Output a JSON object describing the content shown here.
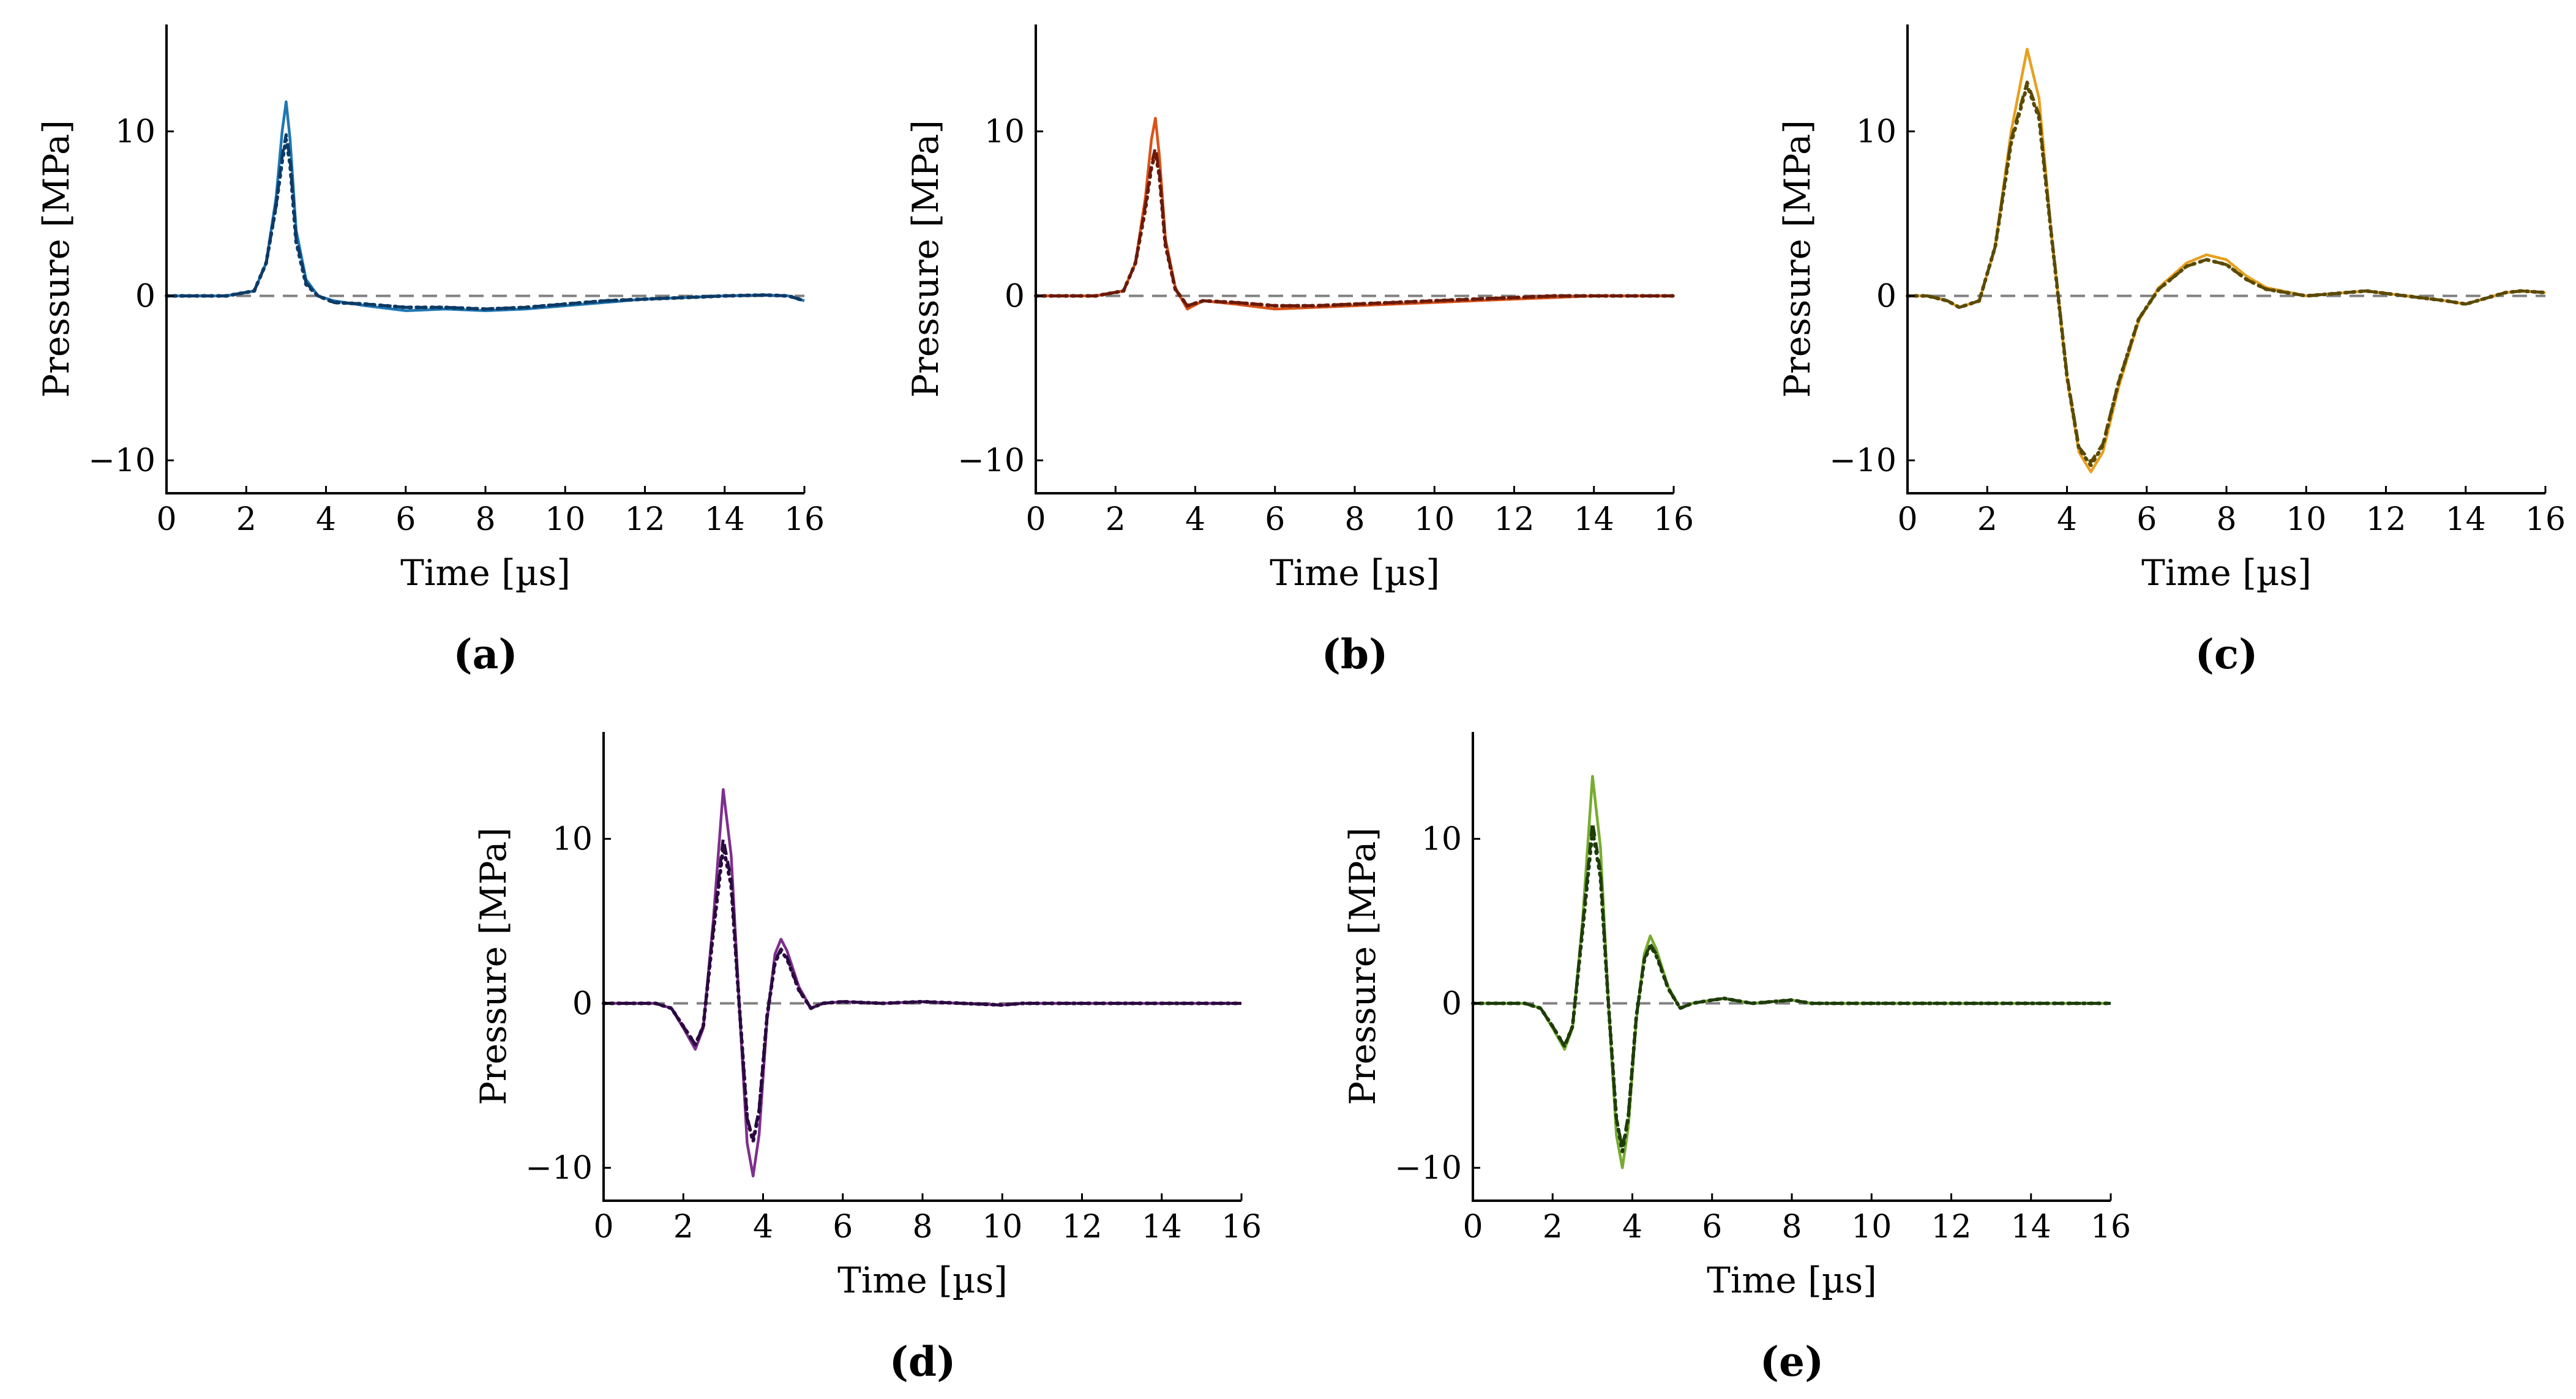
{
  "chart_data": [
    {
      "id": "a",
      "type": "line",
      "panel_label": "(a)",
      "xlabel": "Time [µs]",
      "ylabel": "Pressure [MPa]",
      "xlim": [
        0,
        16
      ],
      "ylim": [
        -12,
        16.5
      ],
      "xticks": [
        0,
        2,
        4,
        6,
        8,
        10,
        12,
        14,
        16
      ],
      "yticks": [
        -10,
        0,
        10
      ],
      "color": "#1f77b4",
      "dark": "#0d3b66",
      "series": [
        {
          "name": "solid",
          "style": "solid",
          "x": [
            0,
            1.5,
            2.2,
            2.5,
            2.75,
            2.9,
            3.0,
            3.1,
            3.25,
            3.5,
            3.8,
            4.2,
            5,
            6,
            7,
            8,
            9,
            10,
            11,
            12,
            13,
            14,
            15,
            15.6,
            16
          ],
          "y": [
            0,
            0,
            0.3,
            2,
            6,
            10,
            11.8,
            9.5,
            4,
            1,
            0,
            -0.3,
            -0.6,
            -0.9,
            -0.8,
            -0.9,
            -0.8,
            -0.6,
            -0.4,
            -0.2,
            -0.1,
            0,
            0.05,
            0,
            -0.3
          ]
        },
        {
          "name": "dashed",
          "style": "dashed",
          "x": [
            0,
            1.5,
            2.2,
            2.5,
            2.75,
            2.9,
            3.0,
            3.1,
            3.25,
            3.5,
            3.8,
            4.2,
            5,
            6,
            7,
            8,
            9,
            10,
            11,
            12,
            13,
            14,
            15,
            15.6,
            16
          ],
          "y": [
            0,
            0,
            0.3,
            2,
            5.5,
            8.5,
            9.8,
            8.3,
            3.5,
            0.8,
            0,
            -0.4,
            -0.5,
            -0.7,
            -0.7,
            -0.8,
            -0.7,
            -0.5,
            -0.3,
            -0.2,
            -0.1,
            0,
            0.05,
            0,
            -0.3
          ]
        },
        {
          "name": "dotted",
          "style": "dotted",
          "x": [
            0,
            1.5,
            2.2,
            2.5,
            2.75,
            2.9,
            3.0,
            3.1,
            3.25,
            3.5,
            3.8,
            4.2,
            5,
            6,
            7,
            8,
            9,
            10,
            11,
            12,
            13,
            14,
            15,
            15.6,
            16
          ],
          "y": [
            0,
            0,
            0.3,
            2,
            5.5,
            8.2,
            9.5,
            8.0,
            3.3,
            0.7,
            0,
            -0.4,
            -0.5,
            -0.7,
            -0.7,
            -0.8,
            -0.7,
            -0.5,
            -0.3,
            -0.2,
            -0.1,
            0,
            0.05,
            0,
            -0.3
          ]
        }
      ]
    },
    {
      "id": "b",
      "type": "line",
      "panel_label": "(b)",
      "xlabel": "Time [µs]",
      "ylabel": "Pressure [MPa]",
      "xlim": [
        0,
        16
      ],
      "ylim": [
        -12,
        16.5
      ],
      "xticks": [
        0,
        2,
        4,
        6,
        8,
        10,
        12,
        14,
        16
      ],
      "yticks": [
        -10,
        0,
        10
      ],
      "color": "#d95319",
      "dark": "#6b1a0a",
      "series": [
        {
          "name": "solid",
          "style": "solid",
          "x": [
            0,
            1.5,
            2.2,
            2.5,
            2.75,
            2.9,
            3.0,
            3.1,
            3.25,
            3.5,
            3.8,
            4.2,
            5,
            6,
            7,
            8,
            9,
            10,
            11,
            12,
            13,
            14,
            15,
            16
          ],
          "y": [
            0,
            0,
            0.3,
            2,
            6,
            9.5,
            10.8,
            8.5,
            3.5,
            0.5,
            -0.8,
            -0.3,
            -0.5,
            -0.8,
            -0.7,
            -0.6,
            -0.5,
            -0.4,
            -0.3,
            -0.2,
            -0.1,
            0,
            0,
            0
          ]
        },
        {
          "name": "dashed",
          "style": "dashed",
          "x": [
            0,
            1.5,
            2.2,
            2.5,
            2.75,
            2.9,
            3.0,
            3.1,
            3.25,
            3.5,
            3.8,
            4.2,
            5,
            6,
            7,
            8,
            9,
            10,
            11,
            12,
            13,
            14,
            15,
            16
          ],
          "y": [
            0,
            0,
            0.3,
            2,
            5.5,
            8,
            9.0,
            7.5,
            3.2,
            0.4,
            -0.6,
            -0.3,
            -0.4,
            -0.6,
            -0.6,
            -0.5,
            -0.4,
            -0.3,
            -0.2,
            -0.1,
            0,
            0,
            0,
            0
          ]
        },
        {
          "name": "dotted",
          "style": "dotted",
          "x": [
            0,
            1.5,
            2.2,
            2.5,
            2.75,
            2.9,
            3.0,
            3.1,
            3.25,
            3.5,
            3.8,
            4.2,
            5,
            6,
            7,
            8,
            9,
            10,
            11,
            12,
            13,
            14,
            15,
            16
          ],
          "y": [
            0,
            0,
            0.3,
            2,
            5.3,
            7.8,
            8.7,
            7.3,
            3.1,
            0.4,
            -0.6,
            -0.3,
            -0.4,
            -0.6,
            -0.6,
            -0.5,
            -0.4,
            -0.3,
            -0.2,
            -0.1,
            0,
            0,
            0,
            0
          ]
        }
      ]
    },
    {
      "id": "c",
      "type": "line",
      "panel_label": "(c)",
      "xlabel": "Time [µs]",
      "ylabel": "Pressure [MPa]",
      "xlim": [
        0,
        16
      ],
      "ylim": [
        -12,
        16.5
      ],
      "xticks": [
        0,
        2,
        4,
        6,
        8,
        10,
        12,
        14,
        16
      ],
      "yticks": [
        -10,
        0,
        10
      ],
      "color": "#e6a020",
      "dark": "#5a4a00",
      "series": [
        {
          "name": "solid",
          "style": "solid",
          "x": [
            0,
            0.5,
            1.0,
            1.3,
            1.8,
            2.2,
            2.6,
            3.0,
            3.3,
            3.6,
            4.0,
            4.3,
            4.6,
            4.9,
            5.3,
            5.8,
            6.3,
            7.0,
            7.5,
            8.0,
            8.5,
            9.0,
            10.0,
            11.0,
            11.5,
            12.5,
            13.5,
            14.0,
            15.0,
            15.4,
            16.0
          ],
          "y": [
            0,
            0,
            -0.3,
            -0.7,
            -0.3,
            3,
            10,
            15,
            12,
            4,
            -5,
            -9.5,
            -10.7,
            -9.5,
            -5.5,
            -1.5,
            0.5,
            2,
            2.5,
            2.2,
            1.2,
            0.5,
            0,
            0.2,
            0.3,
            0,
            -0.3,
            -0.5,
            0.2,
            0.3,
            0.2
          ]
        },
        {
          "name": "dashed",
          "style": "dashed",
          "x": [
            0,
            0.5,
            1.0,
            1.3,
            1.8,
            2.2,
            2.6,
            3.0,
            3.3,
            3.6,
            4.0,
            4.3,
            4.6,
            4.9,
            5.3,
            5.8,
            6.3,
            7.0,
            7.5,
            8.0,
            8.5,
            9.0,
            10.0,
            11.0,
            11.5,
            12.5,
            13.5,
            14.0,
            15.0,
            15.4,
            16.0
          ],
          "y": [
            0,
            0,
            -0.3,
            -0.7,
            -0.3,
            3,
            9.5,
            13,
            11,
            4,
            -4.8,
            -9.2,
            -10.1,
            -9.0,
            -5.2,
            -1.4,
            0.4,
            1.8,
            2.2,
            1.9,
            1.0,
            0.4,
            0,
            0.2,
            0.3,
            0,
            -0.3,
            -0.5,
            0.2,
            0.3,
            0.2
          ]
        },
        {
          "name": "dotted",
          "style": "dotted",
          "x": [
            0,
            0.5,
            1.0,
            1.3,
            1.8,
            2.2,
            2.6,
            3.0,
            3.3,
            3.6,
            4.0,
            4.3,
            4.6,
            4.9,
            5.3,
            5.8,
            6.3,
            7.0,
            7.5,
            8.0,
            8.5,
            9.0,
            10.0,
            11.0,
            11.5,
            12.5,
            13.5,
            14.0,
            15.0,
            15.4,
            16.0
          ],
          "y": [
            0,
            0,
            -0.3,
            -0.7,
            -0.3,
            3,
            9.3,
            12.8,
            10.8,
            3.9,
            -4.9,
            -9.3,
            -10.3,
            -9.1,
            -5.2,
            -1.4,
            0.4,
            1.8,
            2.2,
            1.9,
            1.0,
            0.4,
            0,
            0.2,
            0.3,
            0,
            -0.3,
            -0.5,
            0.2,
            0.3,
            0.2
          ]
        }
      ]
    },
    {
      "id": "d",
      "type": "line",
      "panel_label": "(d)",
      "xlabel": "Time [µs]",
      "ylabel": "Pressure [MPa]",
      "xlim": [
        0,
        16
      ],
      "ylim": [
        -12,
        16.5
      ],
      "xticks": [
        0,
        2,
        4,
        6,
        8,
        10,
        12,
        14,
        16
      ],
      "yticks": [
        -10,
        0,
        10
      ],
      "color": "#7e2f8e",
      "dark": "#2b0a40",
      "series": [
        {
          "name": "solid",
          "style": "solid",
          "x": [
            0,
            1.3,
            1.7,
            2.0,
            2.3,
            2.5,
            2.75,
            3.0,
            3.2,
            3.4,
            3.6,
            3.75,
            3.9,
            4.1,
            4.3,
            4.45,
            4.6,
            4.9,
            5.2,
            5.5,
            6.0,
            7.0,
            8.0,
            9.0,
            10.0,
            10.5,
            11.0,
            12.0,
            13.0,
            14.0,
            15.0,
            16.0
          ],
          "y": [
            0,
            0,
            -0.3,
            -1.5,
            -2.8,
            -1.5,
            5,
            13,
            9,
            0,
            -8.5,
            -10.5,
            -8,
            -1,
            3,
            3.9,
            3.2,
            1,
            -0.3,
            0,
            0.1,
            0,
            0.1,
            0,
            -0.1,
            0,
            0,
            0,
            0,
            0,
            0,
            0
          ]
        },
        {
          "name": "dashed",
          "style": "dashed",
          "x": [
            0,
            1.3,
            1.7,
            2.0,
            2.3,
            2.5,
            2.75,
            3.0,
            3.2,
            3.4,
            3.6,
            3.75,
            3.9,
            4.1,
            4.3,
            4.45,
            4.6,
            4.9,
            5.2,
            5.5,
            6.0,
            7.0,
            8.0,
            9.0,
            10.0,
            10.5,
            11.0,
            12.0,
            13.0,
            14.0,
            15.0,
            16.0
          ],
          "y": [
            0,
            0,
            -0.3,
            -1.4,
            -2.5,
            -1.4,
            4.5,
            10,
            7.5,
            0,
            -7,
            -8.2,
            -6.5,
            -0.8,
            2.6,
            3.3,
            2.8,
            0.8,
            -0.3,
            0,
            0.1,
            0,
            0.1,
            0,
            -0.1,
            0,
            0,
            0,
            0,
            0,
            0,
            0
          ]
        },
        {
          "name": "dotted",
          "style": "dotted",
          "x": [
            0,
            1.3,
            1.7,
            2.0,
            2.3,
            2.5,
            2.75,
            3.0,
            3.2,
            3.4,
            3.6,
            3.75,
            3.9,
            4.1,
            4.3,
            4.45,
            4.6,
            4.9,
            5.2,
            5.5,
            6.0,
            7.0,
            8.0,
            9.0,
            10.0,
            10.5,
            11.0,
            12.0,
            13.0,
            14.0,
            15.0,
            16.0
          ],
          "y": [
            0,
            0,
            -0.3,
            -1.4,
            -2.5,
            -1.4,
            4.3,
            9.5,
            7.2,
            0,
            -7,
            -8.4,
            -6.6,
            -0.8,
            2.5,
            3.2,
            2.7,
            0.8,
            -0.3,
            0,
            0.1,
            0,
            0.1,
            0,
            -0.1,
            0,
            0,
            0,
            0,
            0,
            0,
            0
          ]
        }
      ]
    },
    {
      "id": "e",
      "type": "line",
      "panel_label": "(e)",
      "xlabel": "Time [µs]",
      "ylabel": "Pressure [MPa]",
      "xlim": [
        0,
        16
      ],
      "ylim": [
        -12,
        16.5
      ],
      "xticks": [
        0,
        2,
        4,
        6,
        8,
        10,
        12,
        14,
        16
      ],
      "yticks": [
        -10,
        0,
        10
      ],
      "color": "#77ac30",
      "dark": "#1e3d0a",
      "series": [
        {
          "name": "solid",
          "style": "solid",
          "x": [
            0,
            1.3,
            1.7,
            2.0,
            2.3,
            2.5,
            2.75,
            3.0,
            3.2,
            3.4,
            3.6,
            3.75,
            3.9,
            4.1,
            4.3,
            4.45,
            4.6,
            4.9,
            5.2,
            5.5,
            6.0,
            6.3,
            7.0,
            8.0,
            8.5,
            9.0,
            10.0,
            11.0,
            12.0,
            13.0,
            14.0,
            15.0,
            16.0
          ],
          "y": [
            0,
            0,
            -0.3,
            -1.5,
            -2.8,
            -1.5,
            5,
            13.8,
            9.5,
            0,
            -8,
            -10,
            -7.5,
            -1,
            3,
            4.1,
            3.3,
            1,
            -0.3,
            0,
            0.2,
            0.3,
            0,
            0.2,
            0,
            0,
            0,
            0,
            0,
            0,
            0,
            0,
            0
          ]
        },
        {
          "name": "dashed",
          "style": "dashed",
          "x": [
            0,
            1.3,
            1.7,
            2.0,
            2.3,
            2.5,
            2.75,
            3.0,
            3.2,
            3.4,
            3.6,
            3.75,
            3.9,
            4.1,
            4.3,
            4.45,
            4.6,
            4.9,
            5.2,
            5.5,
            6.0,
            6.3,
            7.0,
            8.0,
            8.5,
            9.0,
            10.0,
            11.0,
            12.0,
            13.0,
            14.0,
            15.0,
            16.0
          ],
          "y": [
            0,
            0,
            -0.3,
            -1.4,
            -2.6,
            -1.4,
            4.6,
            11,
            8,
            0,
            -7,
            -8.8,
            -6.8,
            -0.8,
            2.7,
            3.6,
            3.0,
            0.9,
            -0.3,
            0,
            0.2,
            0.3,
            0,
            0.2,
            0,
            0,
            0,
            0,
            0,
            0,
            0,
            0,
            0
          ]
        },
        {
          "name": "dotted",
          "style": "dotted",
          "x": [
            0,
            1.3,
            1.7,
            2.0,
            2.3,
            2.5,
            2.75,
            3.0,
            3.2,
            3.4,
            3.6,
            3.75,
            3.9,
            4.1,
            4.3,
            4.45,
            4.6,
            4.9,
            5.2,
            5.5,
            6.0,
            6.3,
            7.0,
            8.0,
            8.5,
            9.0,
            10.0,
            11.0,
            12.0,
            13.0,
            14.0,
            15.0,
            16.0
          ],
          "y": [
            0,
            0,
            -0.3,
            -1.4,
            -2.6,
            -1.4,
            4.4,
            10.5,
            7.7,
            0,
            -7,
            -9.0,
            -6.9,
            -0.8,
            2.6,
            3.5,
            2.9,
            0.9,
            -0.3,
            0,
            0.2,
            0.3,
            0,
            0.2,
            0,
            0,
            0,
            0,
            0,
            0,
            0,
            0,
            0
          ]
        }
      ]
    }
  ]
}
